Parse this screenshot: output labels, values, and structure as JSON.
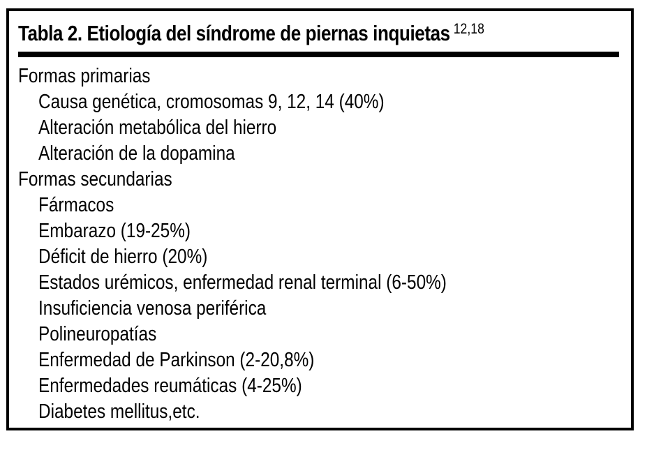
{
  "table": {
    "title": "Tabla 2. Etiología del síndrome de piernas inquietas",
    "title_superscript": "12,18",
    "sections": [
      {
        "heading": "Formas primarias",
        "items": [
          "Causa genética, cromosomas 9, 12, 14 (40%)",
          "Alteración metabólica del hierro",
          "Alteración de la dopamina"
        ]
      },
      {
        "heading": "Formas secundarias",
        "items": [
          "Fármacos",
          "Embarazo (19-25%)",
          "Déficit de hierro (20%)",
          "Estados urémicos, enfermedad renal terminal (6-50%)",
          "Insuficiencia venosa periférica",
          "Polineuropatías",
          "Enfermedad de Parkinson (2-20,8%)",
          "Enfermedades reumáticas (4-25%)",
          "Diabetes mellitus,etc."
        ]
      }
    ],
    "colors": {
      "text": "#000000",
      "background": "#ffffff",
      "border": "#000000"
    }
  }
}
